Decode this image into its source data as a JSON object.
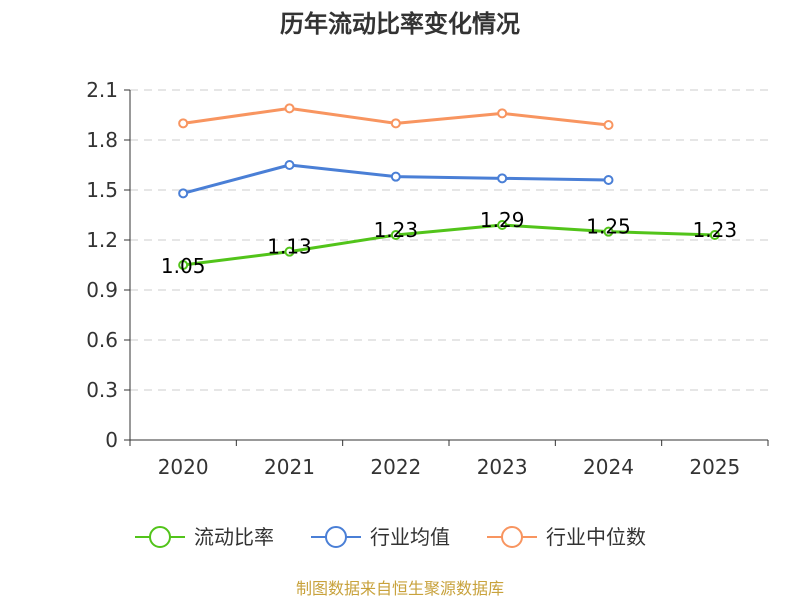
{
  "chart_data": {
    "type": "line",
    "title": "历年流动比率变化情况",
    "categories": [
      "2020",
      "2021",
      "2022",
      "2023",
      "2024",
      "2025"
    ],
    "y_ticks": [
      "0",
      "0.3",
      "0.6",
      "0.9",
      "1.2",
      "1.5",
      "1.8",
      "2.1"
    ],
    "ylim": [
      0,
      2.1
    ],
    "grid": true,
    "legend_position": "bottom",
    "series": [
      {
        "name": "流动比率",
        "color": "#52c41a",
        "values": [
          1.05,
          1.13,
          1.23,
          1.29,
          1.25,
          1.23
        ],
        "labels": [
          "1.05",
          "1.13",
          "1.23",
          "1.29",
          "1.25",
          "1.23"
        ],
        "show_labels": true
      },
      {
        "name": "行业均值",
        "color": "#4a7fd6",
        "values": [
          1.48,
          1.65,
          1.58,
          1.57,
          1.56,
          null
        ],
        "show_labels": false
      },
      {
        "name": "行业中位数",
        "color": "#f89560",
        "values": [
          1.9,
          1.99,
          1.9,
          1.96,
          1.89,
          null
        ],
        "show_labels": false
      }
    ]
  },
  "source_text": "制图数据来自恒生聚源数据库"
}
